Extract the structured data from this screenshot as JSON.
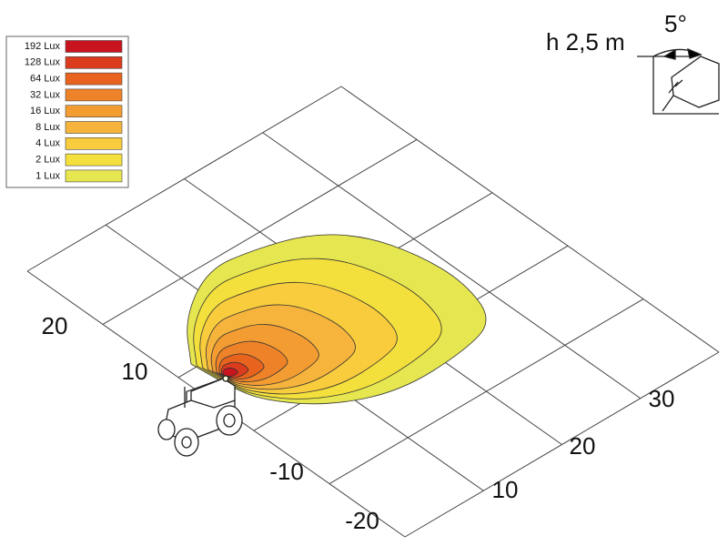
{
  "legend": {
    "items": [
      {
        "label": "192 Lux",
        "color": "#c8141e"
      },
      {
        "label": "128 Lux",
        "color": "#dc3c1e"
      },
      {
        "label": "64 Lux",
        "color": "#e8641e"
      },
      {
        "label": "32 Lux",
        "color": "#ee8228"
      },
      {
        "label": "16 Lux",
        "color": "#f29c32"
      },
      {
        "label": "8 Lux",
        "color": "#f6b43c"
      },
      {
        "label": "4 Lux",
        "color": "#f8cc3c"
      },
      {
        "label": "2 Lux",
        "color": "#f4e03c"
      },
      {
        "label": "1 Lux",
        "color": "#e6e650"
      }
    ]
  },
  "mounting": {
    "height": "h 2,5 m",
    "tilt": "5°"
  },
  "axes": {
    "left_labels": [
      "20",
      "10",
      "-10",
      "-20"
    ],
    "right_labels": [
      "10",
      "20",
      "30"
    ]
  }
}
